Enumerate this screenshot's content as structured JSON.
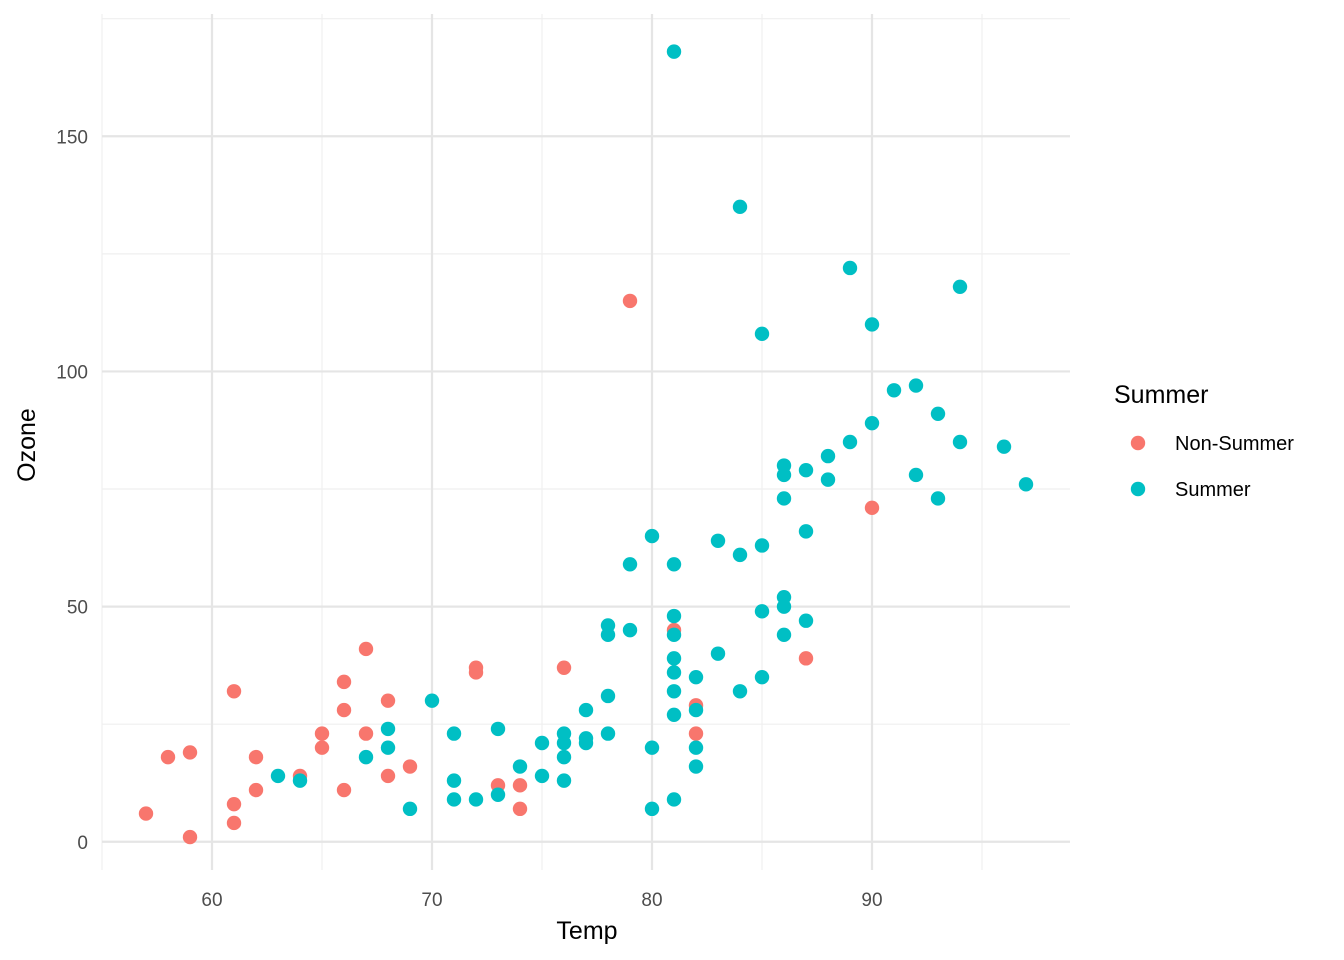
{
  "chart_data": {
    "type": "scatter",
    "xlabel": "Temp",
    "ylabel": "Ozone",
    "xlim": [
      55,
      99
    ],
    "ylim": [
      -6,
      176
    ],
    "x_ticks": [
      60,
      70,
      80,
      90
    ],
    "y_ticks": [
      0,
      50,
      100,
      150
    ],
    "x_tick_labels": [
      "60",
      "70",
      "80",
      "90"
    ],
    "y_tick_labels": [
      "0",
      "50",
      "100",
      "150"
    ],
    "grid": true,
    "legend": {
      "title": "Summer",
      "placement": "right"
    },
    "series": [
      {
        "name": "Non-Summer",
        "color": "#F8766D",
        "points": [
          [
            57,
            6
          ],
          [
            58,
            18
          ],
          [
            59,
            19
          ],
          [
            59,
            1
          ],
          [
            61,
            32
          ],
          [
            61,
            8
          ],
          [
            61,
            4
          ],
          [
            62,
            18
          ],
          [
            62,
            11
          ],
          [
            64,
            14
          ],
          [
            65,
            23
          ],
          [
            65,
            20
          ],
          [
            66,
            34
          ],
          [
            66,
            28
          ],
          [
            66,
            11
          ],
          [
            67,
            41
          ],
          [
            67,
            23
          ],
          [
            68,
            30
          ],
          [
            68,
            14
          ],
          [
            69,
            16
          ],
          [
            72,
            37
          ],
          [
            72,
            36
          ],
          [
            73,
            12
          ],
          [
            74,
            12
          ],
          [
            74,
            7
          ],
          [
            76,
            37
          ],
          [
            79,
            115
          ],
          [
            81,
            45
          ],
          [
            82,
            29
          ],
          [
            82,
            23
          ],
          [
            87,
            39
          ],
          [
            90,
            71
          ]
        ]
      },
      {
        "name": "Summer",
        "color": "#00BFC4",
        "points": [
          [
            63,
            14
          ],
          [
            64,
            13
          ],
          [
            67,
            18
          ],
          [
            68,
            24
          ],
          [
            68,
            20
          ],
          [
            69,
            7
          ],
          [
            70,
            30
          ],
          [
            71,
            23
          ],
          [
            71,
            13
          ],
          [
            71,
            9
          ],
          [
            72,
            9
          ],
          [
            73,
            24
          ],
          [
            73,
            10
          ],
          [
            74,
            16
          ],
          [
            75,
            21
          ],
          [
            75,
            14
          ],
          [
            76,
            23
          ],
          [
            76,
            21
          ],
          [
            76,
            18
          ],
          [
            76,
            13
          ],
          [
            77,
            28
          ],
          [
            77,
            22
          ],
          [
            77,
            21
          ],
          [
            78,
            46
          ],
          [
            78,
            44
          ],
          [
            78,
            31
          ],
          [
            78,
            23
          ],
          [
            79,
            59
          ],
          [
            79,
            45
          ],
          [
            80,
            65
          ],
          [
            80,
            20
          ],
          [
            80,
            7
          ],
          [
            81,
            168
          ],
          [
            81,
            59
          ],
          [
            81,
            48
          ],
          [
            81,
            44
          ],
          [
            81,
            39
          ],
          [
            81,
            36
          ],
          [
            81,
            32
          ],
          [
            81,
            27
          ],
          [
            81,
            9
          ],
          [
            82,
            35
          ],
          [
            82,
            28
          ],
          [
            82,
            20
          ],
          [
            82,
            16
          ],
          [
            83,
            64
          ],
          [
            83,
            40
          ],
          [
            84,
            135
          ],
          [
            84,
            61
          ],
          [
            84,
            32
          ],
          [
            85,
            108
          ],
          [
            85,
            63
          ],
          [
            85,
            49
          ],
          [
            85,
            35
          ],
          [
            86,
            80
          ],
          [
            86,
            78
          ],
          [
            86,
            73
          ],
          [
            86,
            52
          ],
          [
            86,
            50
          ],
          [
            86,
            44
          ],
          [
            87,
            79
          ],
          [
            87,
            66
          ],
          [
            87,
            47
          ],
          [
            88,
            82
          ],
          [
            88,
            77
          ],
          [
            89,
            122
          ],
          [
            89,
            85
          ],
          [
            90,
            110
          ],
          [
            90,
            89
          ],
          [
            91,
            96
          ],
          [
            92,
            97
          ],
          [
            92,
            78
          ],
          [
            93,
            91
          ],
          [
            93,
            73
          ],
          [
            94,
            118
          ],
          [
            94,
            85
          ],
          [
            96,
            84
          ],
          [
            97,
            76
          ]
        ]
      }
    ]
  }
}
